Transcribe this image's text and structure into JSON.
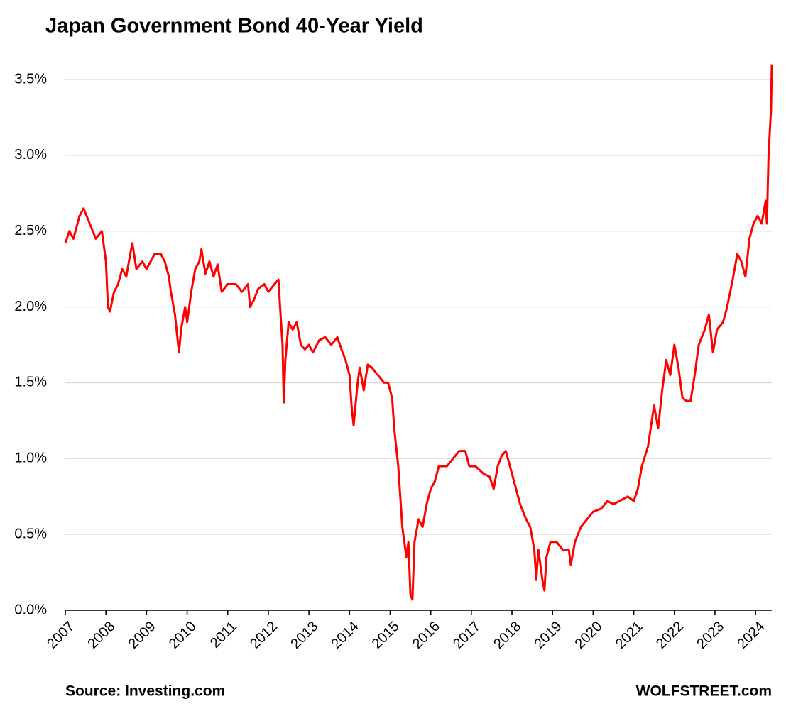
{
  "chart_data": {
    "type": "line",
    "title": "Japan Government Bond 40-Year Yield",
    "source": "Source: Investing.com",
    "credit": "WOLFSTREET.com",
    "xlim": [
      2007,
      2024.4
    ],
    "xticks": [
      2007,
      2008,
      2009,
      2010,
      2011,
      2012,
      2013,
      2014,
      2015,
      2016,
      2017,
      2018,
      2019,
      2020,
      2021,
      2022,
      2023,
      2024
    ],
    "ylim": [
      0,
      3.6
    ],
    "yticks": [
      {
        "value": 0,
        "label": "0.0%"
      },
      {
        "value": 0.5,
        "label": "0.5%"
      },
      {
        "value": 1,
        "label": "1.0%"
      },
      {
        "value": 1.5,
        "label": "1.5%"
      },
      {
        "value": 2,
        "label": "2.0%"
      },
      {
        "value": 2.5,
        "label": "2.5%"
      },
      {
        "value": 3,
        "label": "3.0%"
      },
      {
        "value": 3.5,
        "label": "3.5%"
      }
    ],
    "grid": true,
    "x": [
      2007.0,
      2007.1,
      2007.2,
      2007.35,
      2007.45,
      2007.6,
      2007.75,
      2007.9,
      2008.0,
      2008.05,
      2008.1,
      2008.2,
      2008.3,
      2008.4,
      2008.5,
      2008.6,
      2008.65,
      2008.75,
      2008.9,
      2009.0,
      2009.1,
      2009.2,
      2009.35,
      2009.45,
      2009.55,
      2009.6,
      2009.7,
      2009.75,
      2009.8,
      2009.85,
      2009.95,
      2010.0,
      2010.1,
      2010.2,
      2010.3,
      2010.35,
      2010.45,
      2010.55,
      2010.65,
      2010.75,
      2010.85,
      2011.0,
      2011.2,
      2011.35,
      2011.5,
      2011.55,
      2011.65,
      2011.75,
      2011.9,
      2012.0,
      2012.15,
      2012.25,
      2012.3,
      2012.35,
      2012.38,
      2012.42,
      2012.5,
      2012.6,
      2012.7,
      2012.8,
      2012.9,
      2013.0,
      2013.1,
      2013.25,
      2013.4,
      2013.55,
      2013.7,
      2013.8,
      2013.9,
      2014.0,
      2014.05,
      2014.1,
      2014.2,
      2014.25,
      2014.35,
      2014.45,
      2014.55,
      2014.7,
      2014.85,
      2014.95,
      2015.05,
      2015.1,
      2015.2,
      2015.3,
      2015.35,
      2015.4,
      2015.45,
      2015.5,
      2015.55,
      2015.6,
      2015.7,
      2015.8,
      2015.9,
      2016.0,
      2016.1,
      2016.2,
      2016.3,
      2016.4,
      2016.55,
      2016.7,
      2016.85,
      2016.95,
      2017.1,
      2017.3,
      2017.45,
      2017.55,
      2017.65,
      2017.75,
      2017.85,
      2017.95,
      2018.05,
      2018.2,
      2018.35,
      2018.45,
      2018.55,
      2018.6,
      2018.65,
      2018.75,
      2018.8,
      2018.85,
      2018.95,
      2019.1,
      2019.25,
      2019.4,
      2019.45,
      2019.55,
      2019.7,
      2019.85,
      2020.0,
      2020.2,
      2020.35,
      2020.5,
      2020.65,
      2020.85,
      2021.0,
      2021.1,
      2021.2,
      2021.35,
      2021.5,
      2021.6,
      2021.7,
      2021.8,
      2021.9,
      2022.0,
      2022.1,
      2022.2,
      2022.3,
      2022.4,
      2022.5,
      2022.6,
      2022.75,
      2022.85,
      2022.95,
      2023.05,
      2023.2,
      2023.3,
      2023.45,
      2023.55,
      2023.65,
      2023.75,
      2023.85,
      2023.95,
      2024.05,
      2024.15,
      2024.25,
      2024.28,
      2024.32,
      2024.35,
      2024.38,
      2024.4
    ],
    "series": [
      {
        "color": "#ff0000",
        "values": [
          2.42,
          2.5,
          2.45,
          2.6,
          2.65,
          2.55,
          2.45,
          2.5,
          2.3,
          2.0,
          1.97,
          2.1,
          2.15,
          2.25,
          2.2,
          2.35,
          2.42,
          2.25,
          2.3,
          2.25,
          2.3,
          2.35,
          2.35,
          2.3,
          2.2,
          2.1,
          1.95,
          1.82,
          1.7,
          1.85,
          2.0,
          1.9,
          2.1,
          2.25,
          2.3,
          2.38,
          2.22,
          2.3,
          2.2,
          2.28,
          2.1,
          2.15,
          2.15,
          2.1,
          2.15,
          2.0,
          2.05,
          2.12,
          2.15,
          2.1,
          2.15,
          2.18,
          1.95,
          1.75,
          1.37,
          1.65,
          1.9,
          1.85,
          1.9,
          1.75,
          1.72,
          1.75,
          1.7,
          1.78,
          1.8,
          1.75,
          1.8,
          1.72,
          1.65,
          1.55,
          1.35,
          1.22,
          1.5,
          1.6,
          1.45,
          1.62,
          1.6,
          1.55,
          1.5,
          1.5,
          1.4,
          1.2,
          0.95,
          0.55,
          0.45,
          0.35,
          0.45,
          0.1,
          0.07,
          0.45,
          0.6,
          0.55,
          0.7,
          0.8,
          0.85,
          0.95,
          0.95,
          0.95,
          1.0,
          1.05,
          1.05,
          0.95,
          0.95,
          0.9,
          0.88,
          0.8,
          0.95,
          1.02,
          1.05,
          0.95,
          0.85,
          0.7,
          0.6,
          0.55,
          0.4,
          0.2,
          0.4,
          0.2,
          0.13,
          0.35,
          0.45,
          0.45,
          0.4,
          0.4,
          0.3,
          0.45,
          0.55,
          0.6,
          0.65,
          0.67,
          0.72,
          0.7,
          0.72,
          0.75,
          0.72,
          0.8,
          0.95,
          1.08,
          1.35,
          1.2,
          1.45,
          1.65,
          1.55,
          1.75,
          1.6,
          1.4,
          1.38,
          1.38,
          1.55,
          1.75,
          1.85,
          1.95,
          1.7,
          1.85,
          1.9,
          2.0,
          2.2,
          2.35,
          2.3,
          2.2,
          2.45,
          2.55,
          2.6,
          2.55,
          2.7,
          2.55,
          3.0,
          3.15,
          3.3,
          3.6
        ]
      }
    ]
  }
}
